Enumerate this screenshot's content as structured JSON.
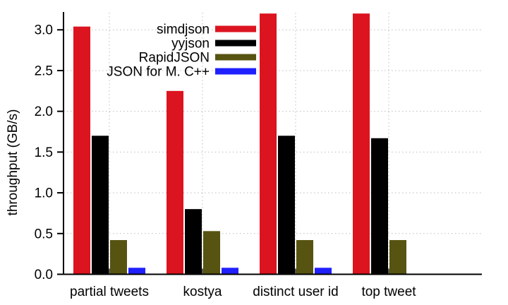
{
  "chart_data": {
    "type": "bar",
    "title": "",
    "xlabel": "",
    "ylabel": "throughput (GB/s)",
    "categories": [
      "partial tweets",
      "kostya",
      "distinct user id",
      "top tweet"
    ],
    "series": [
      {
        "name": "simdjson",
        "color": "#dc1420",
        "values": [
          3.04,
          2.25,
          3.2,
          3.2
        ]
      },
      {
        "name": "yyjson",
        "color": "#000000",
        "values": [
          1.7,
          0.8,
          1.7,
          1.67
        ]
      },
      {
        "name": "RapidJSON",
        "color": "#575412",
        "values": [
          0.42,
          0.53,
          0.42,
          0.42
        ]
      },
      {
        "name": "JSON for M. C++",
        "color": "#2020ff",
        "values": [
          0.08,
          0.08,
          0.08,
          0.0
        ]
      }
    ],
    "ylim": [
      0,
      3.21
    ],
    "yticks": [
      0.0,
      0.5,
      1.0,
      1.5,
      2.0,
      2.5,
      3.0
    ],
    "ytick_labels": [
      "0.0",
      "0.5",
      "1.0",
      "1.5",
      "2.0",
      "2.5",
      "3.0"
    ],
    "grid": {
      "horizontal_at": [
        0.5,
        1.0,
        1.5,
        2.0,
        2.5,
        3.0
      ],
      "vertical_at_category_centers": true,
      "style": "dotted",
      "color": "#bcbcbc"
    },
    "legend": {
      "position": "top-inside, labels right-aligned with color swatch to the right",
      "entries": [
        "simdjson",
        "yyjson",
        "RapidJSON",
        "JSON for M. C++"
      ]
    },
    "colors": {
      "background": "#ffffff",
      "axis": "#000000",
      "tick_text": "#000000"
    },
    "notes": "bars for simdjson on 'distinct user id' and 'top tweet' reach the top of the plotted range; no visible bar for 'JSON for M. C++' on 'top tweet'"
  }
}
